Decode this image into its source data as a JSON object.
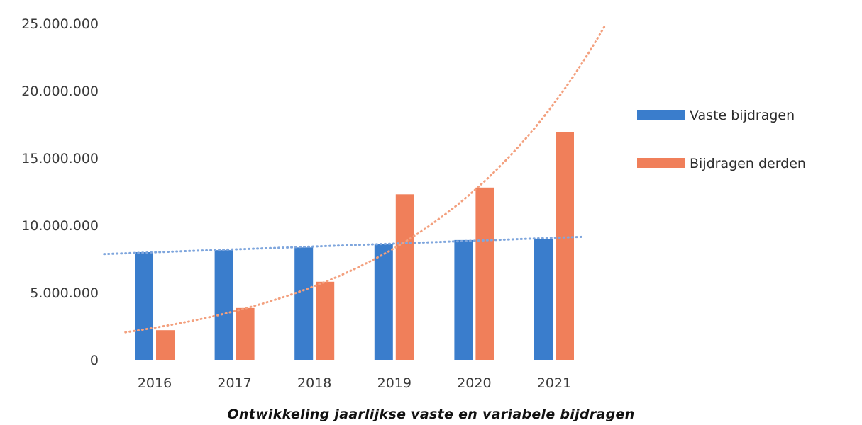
{
  "chart_data": {
    "type": "bar",
    "title": "Ontwikkeling jaarlijkse vaste en variabele bijdragen",
    "categories": [
      "2016",
      "2017",
      "2018",
      "2019",
      "2020",
      "2021"
    ],
    "series": [
      {
        "name": "Vaste bijdragen",
        "color": "#3a7dcc",
        "values": [
          8000000,
          8150000,
          8350000,
          8600000,
          8900000,
          9000000
        ]
      },
      {
        "name": "Bijdragen derden",
        "color": "#f07f5a",
        "values": [
          2200000,
          3850000,
          5800000,
          12300000,
          12800000,
          16900000
        ]
      }
    ],
    "trendlines": [
      {
        "series": "Vaste bijdragen",
        "kind": "linear",
        "style": "dotted",
        "color": "#7fa6dd"
      },
      {
        "series": "Bijdragen derden",
        "kind": "exponential",
        "style": "dotted",
        "color": "#f3a07e"
      }
    ],
    "y_ticks": [
      "0",
      "5.000.000",
      "10.000.000",
      "15.000.000",
      "20.000.000",
      "25.000.000"
    ],
    "ylim": [
      0,
      25000000
    ],
    "grid": false,
    "legend_position": "right"
  }
}
